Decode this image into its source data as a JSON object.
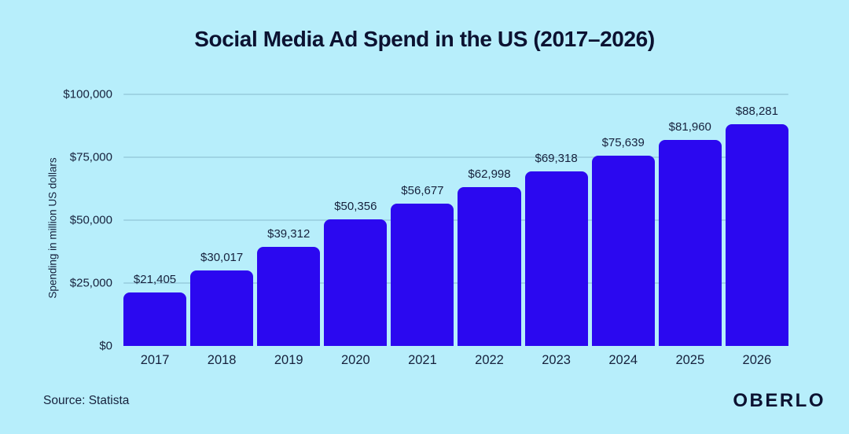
{
  "footer": {
    "source": "Source: Statista",
    "brand": "OBERLO"
  },
  "chart_data": {
    "type": "bar",
    "title": "Social Media Ad Spend in the US (2017–2026)",
    "categories": [
      "2017",
      "2018",
      "2019",
      "2020",
      "2021",
      "2022",
      "2023",
      "2024",
      "2025",
      "2026"
    ],
    "values": [
      21405,
      30017,
      39312,
      50356,
      56677,
      62998,
      69318,
      75639,
      81960,
      88281
    ],
    "value_labels": [
      "$21,405",
      "$30,017",
      "$39,312",
      "$50,356",
      "$56,677",
      "$62,998",
      "$69,318",
      "$75,639",
      "$81,960",
      "$88,281"
    ],
    "xlabel": "",
    "ylabel": "Spending in million US dollars",
    "ylim": [
      0,
      100000
    ],
    "yticks": [
      0,
      25000,
      50000,
      75000,
      100000
    ],
    "ytick_labels": [
      "$0",
      "$25,000",
      "$50,000",
      "$75,000",
      "$100,000"
    ],
    "grid": true,
    "legend": false,
    "colors": {
      "background": "#b7eefb",
      "bar": "#2b08f0",
      "text": "#16213c",
      "title": "#0c1231",
      "gridline": "rgba(16,60,90,0.14)"
    }
  }
}
